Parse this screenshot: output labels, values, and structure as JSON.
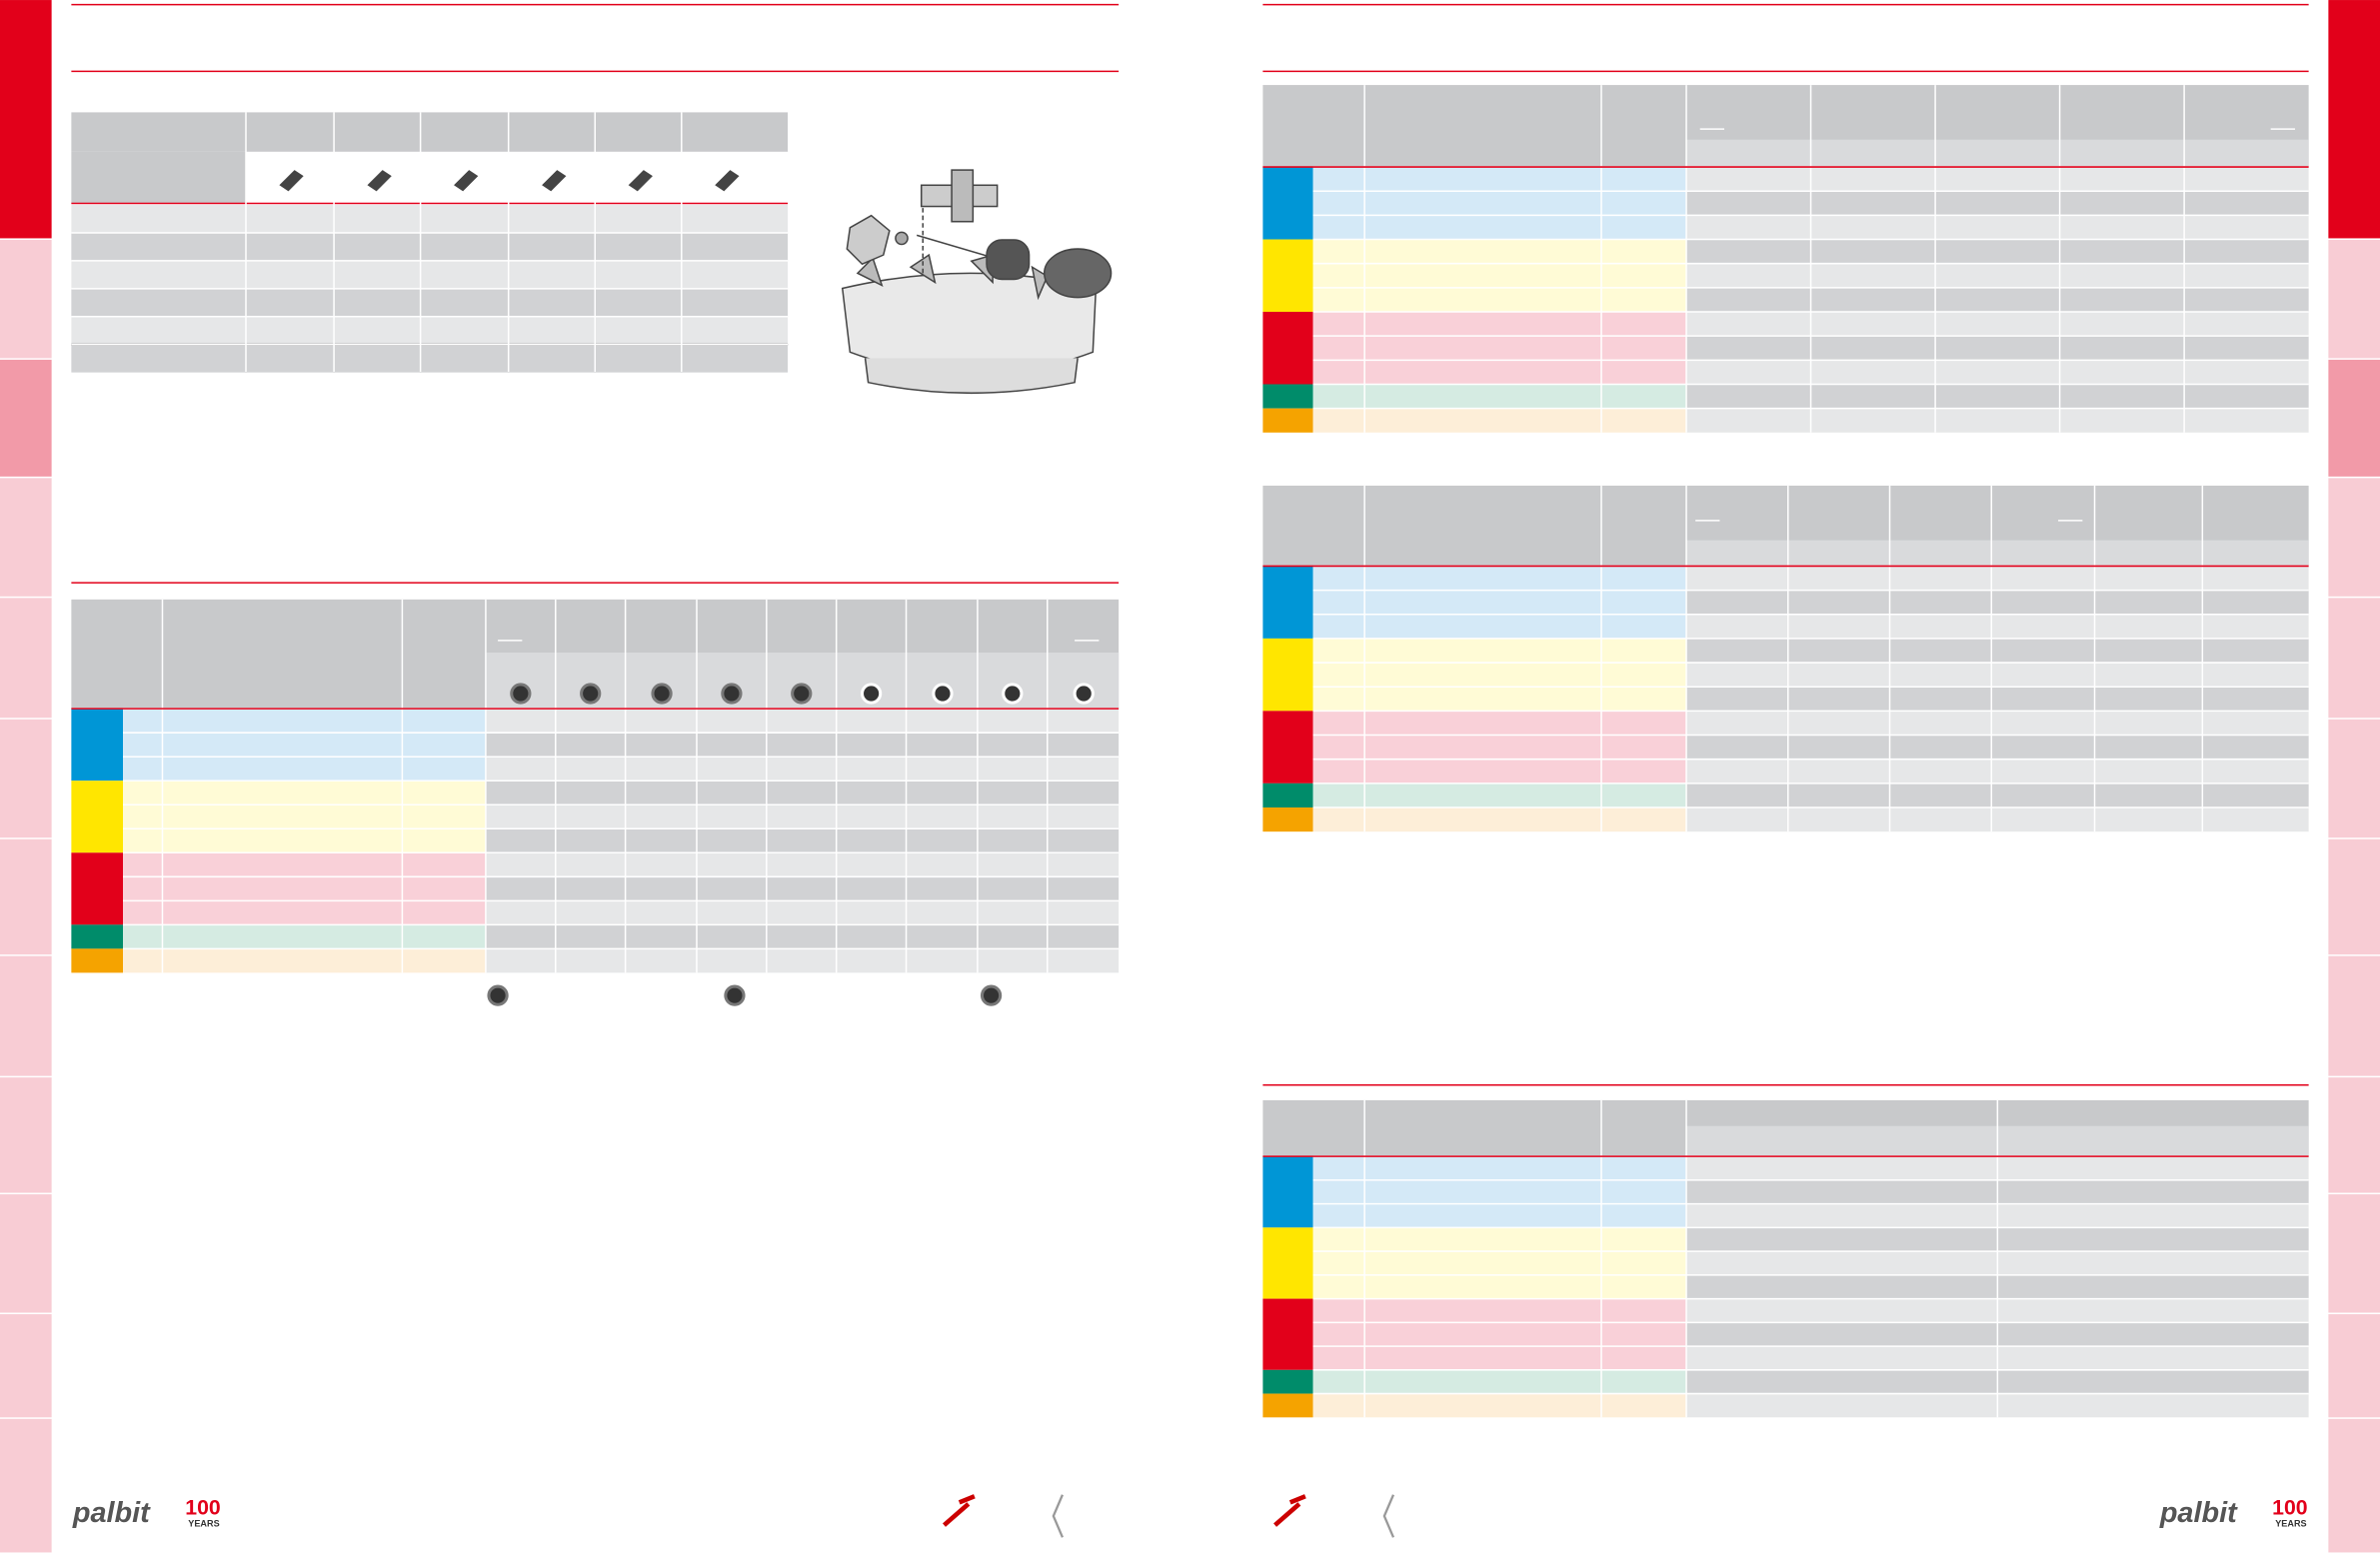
{
  "logos": [
    {
      "brand": "palbit",
      "badge": "100",
      "caption": "YEARS"
    },
    {
      "brand": "palbit",
      "badge": "100",
      "caption": "YEARS"
    }
  ]
}
